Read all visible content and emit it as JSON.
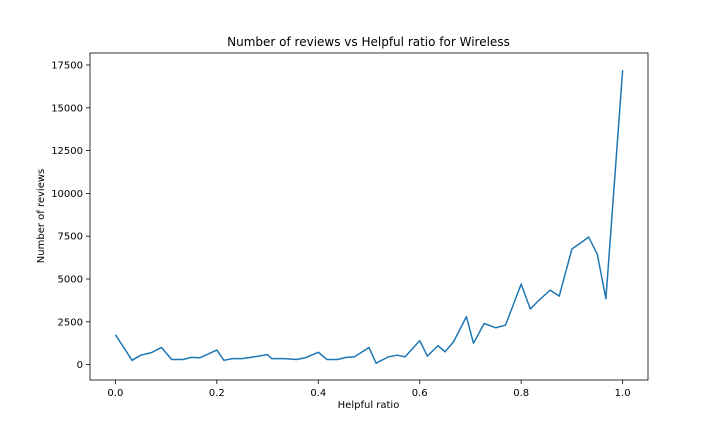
{
  "chart_data": {
    "type": "line",
    "title": "Number of reviews vs Helpful ratio for Wireless",
    "xlabel": "Helpful ratio",
    "ylabel": "Number of reviews",
    "xlim": [
      -0.05,
      1.05
    ],
    "ylim": [
      -900,
      18200
    ],
    "xticks": [
      0.0,
      0.2,
      0.4,
      0.6,
      0.8,
      1.0
    ],
    "xtick_labels": [
      "0.0",
      "0.2",
      "0.4",
      "0.6",
      "0.8",
      "1.0"
    ],
    "yticks": [
      0,
      2500,
      5000,
      7500,
      10000,
      12500,
      15000,
      17500
    ],
    "ytick_labels": [
      "0",
      "2500",
      "5000",
      "7500",
      "10000",
      "12500",
      "15000",
      "17500"
    ],
    "grid": false,
    "line_color": "#1f77b4",
    "series": [
      {
        "name": "",
        "x": [
          0.0,
          0.033,
          0.05,
          0.071,
          0.091,
          0.111,
          0.133,
          0.15,
          0.167,
          0.2,
          0.214,
          0.231,
          0.25,
          0.273,
          0.3,
          0.308,
          0.333,
          0.357,
          0.375,
          0.4,
          0.417,
          0.438,
          0.455,
          0.471,
          0.5,
          0.514,
          0.538,
          0.556,
          0.571,
          0.6,
          0.615,
          0.636,
          0.65,
          0.667,
          0.692,
          0.706,
          0.727,
          0.75,
          0.769,
          0.8,
          0.818,
          0.833,
          0.857,
          0.875,
          0.9,
          0.917,
          0.933,
          0.95,
          0.967,
          1.0
        ],
        "y": [
          1750,
          250,
          550,
          700,
          1000,
          300,
          300,
          420,
          400,
          850,
          250,
          350,
          350,
          450,
          580,
          350,
          350,
          300,
          400,
          720,
          300,
          300,
          420,
          450,
          1000,
          80,
          450,
          550,
          450,
          1400,
          500,
          1100,
          750,
          1350,
          2800,
          1250,
          2400,
          2150,
          2300,
          4700,
          3250,
          3700,
          4350,
          4000,
          6750,
          7100,
          7450,
          6450,
          3850,
          17200
        ]
      }
    ]
  }
}
